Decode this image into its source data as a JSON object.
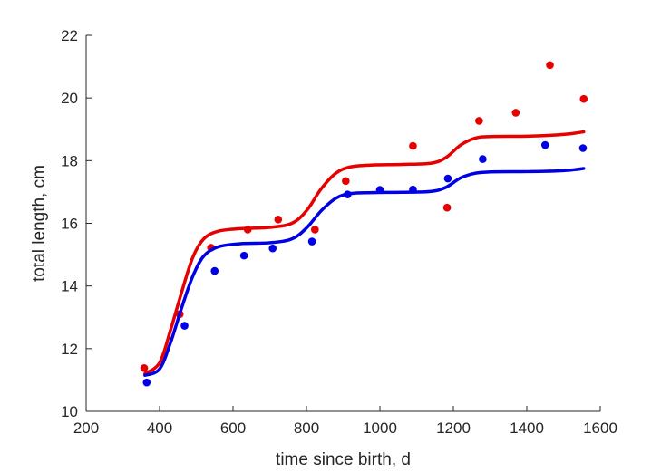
{
  "chart_data": {
    "type": "scatter",
    "xlabel": "time since birth, d",
    "ylabel": "total length, cm",
    "xlim": [
      200,
      1600
    ],
    "ylim": [
      10,
      22
    ],
    "xticks": [
      200,
      400,
      600,
      800,
      1000,
      1200,
      1400,
      1600
    ],
    "yticks": [
      10,
      12,
      14,
      16,
      18,
      20,
      22
    ],
    "grid": false,
    "legend": "none",
    "series": [
      {
        "color": "#e60000",
        "marker": "dot",
        "points": [
          [
            358,
            11.38
          ],
          [
            455,
            13.1
          ],
          [
            540,
            15.22
          ],
          [
            640,
            15.8
          ],
          [
            723,
            16.12
          ],
          [
            823,
            15.8
          ],
          [
            907,
            17.35
          ],
          [
            1090,
            18.47
          ],
          [
            1183,
            16.5
          ],
          [
            1270,
            19.27
          ],
          [
            1370,
            19.53
          ],
          [
            1463,
            21.05
          ],
          [
            1555,
            19.97
          ]
        ],
        "fit": [
          [
            360,
            11.2
          ],
          [
            400,
            11.55
          ],
          [
            430,
            12.6
          ],
          [
            460,
            13.8
          ],
          [
            490,
            14.9
          ],
          [
            520,
            15.5
          ],
          [
            560,
            15.75
          ],
          [
            620,
            15.83
          ],
          [
            700,
            15.87
          ],
          [
            760,
            16.0
          ],
          [
            800,
            16.4
          ],
          [
            840,
            17.1
          ],
          [
            880,
            17.6
          ],
          [
            920,
            17.8
          ],
          [
            980,
            17.86
          ],
          [
            1060,
            17.88
          ],
          [
            1140,
            17.92
          ],
          [
            1180,
            18.1
          ],
          [
            1220,
            18.5
          ],
          [
            1260,
            18.72
          ],
          [
            1300,
            18.77
          ],
          [
            1400,
            18.78
          ],
          [
            1480,
            18.82
          ],
          [
            1520,
            18.86
          ],
          [
            1555,
            18.92
          ]
        ]
      },
      {
        "color": "#0000e6",
        "marker": "dot",
        "points": [
          [
            365,
            10.92
          ],
          [
            468,
            12.73
          ],
          [
            550,
            14.48
          ],
          [
            630,
            14.97
          ],
          [
            708,
            15.2
          ],
          [
            815,
            15.42
          ],
          [
            912,
            16.92
          ],
          [
            1000,
            17.07
          ],
          [
            1090,
            17.08
          ],
          [
            1185,
            17.43
          ],
          [
            1280,
            18.05
          ],
          [
            1450,
            18.5
          ],
          [
            1553,
            18.4
          ]
        ],
        "fit": [
          [
            360,
            11.15
          ],
          [
            400,
            11.35
          ],
          [
            430,
            12.2
          ],
          [
            460,
            13.3
          ],
          [
            490,
            14.3
          ],
          [
            520,
            14.95
          ],
          [
            560,
            15.25
          ],
          [
            620,
            15.35
          ],
          [
            700,
            15.38
          ],
          [
            760,
            15.5
          ],
          [
            800,
            15.85
          ],
          [
            840,
            16.4
          ],
          [
            880,
            16.8
          ],
          [
            920,
            16.95
          ],
          [
            980,
            16.98
          ],
          [
            1060,
            16.99
          ],
          [
            1140,
            17.02
          ],
          [
            1180,
            17.15
          ],
          [
            1220,
            17.45
          ],
          [
            1260,
            17.6
          ],
          [
            1300,
            17.64
          ],
          [
            1400,
            17.65
          ],
          [
            1480,
            17.67
          ],
          [
            1520,
            17.7
          ],
          [
            1555,
            17.75
          ]
        ]
      }
    ]
  }
}
